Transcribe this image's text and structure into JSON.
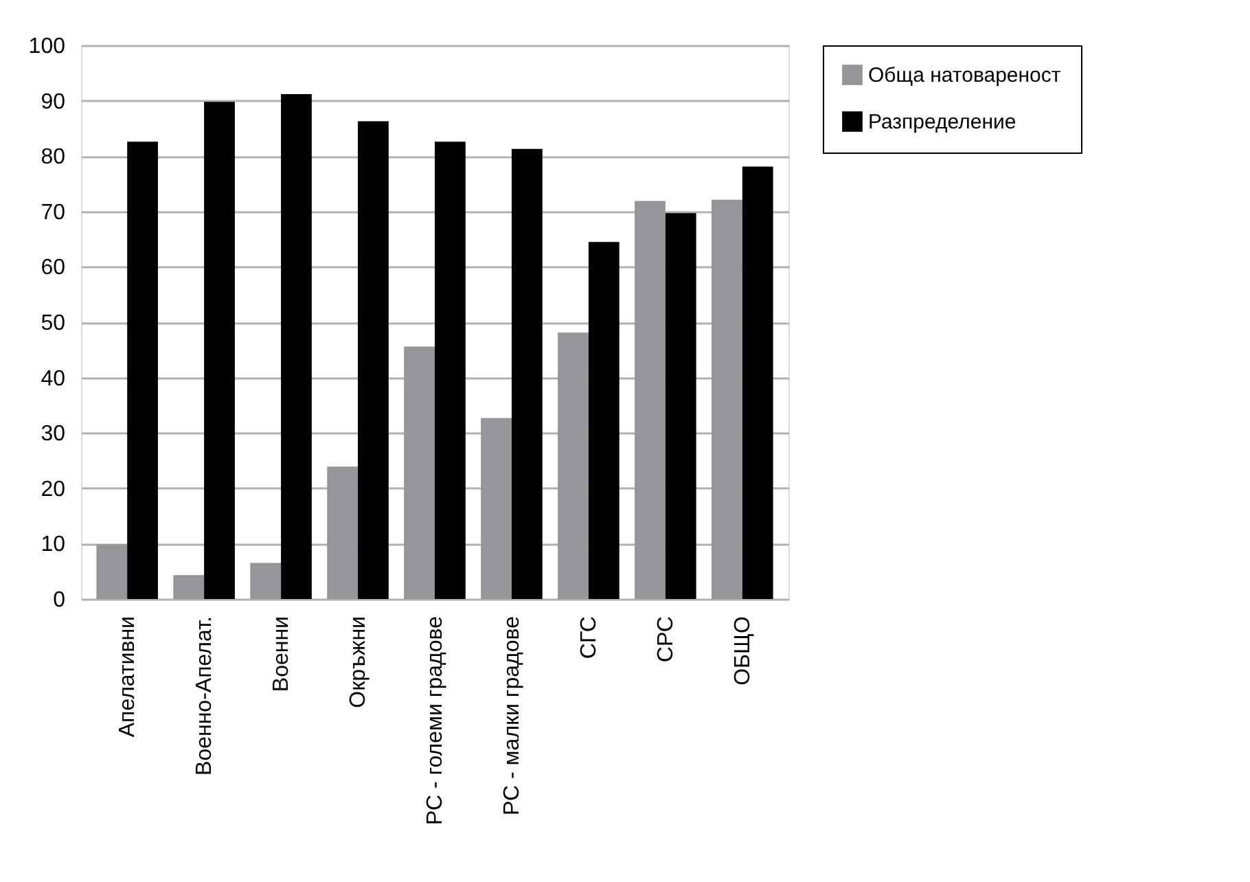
{
  "chart_data": {
    "type": "bar",
    "categories": [
      "Апелативни",
      "Военно-Апелат.",
      "Военни",
      "Окръжни",
      "РС - големи градове",
      "РС - малки градове",
      "СГС",
      "СРС",
      "ОБЩО"
    ],
    "series": [
      {
        "name": "Обща натовареност",
        "color": "#939598",
        "values": [
          9.9,
          4.3,
          6.5,
          23.9,
          45.6,
          32.7,
          48.1,
          71.9,
          72.1
        ]
      },
      {
        "name": "Разпределение",
        "color": "#000000",
        "values": [
          82.6,
          89.8,
          91.2,
          86.3,
          82.6,
          81.3,
          64.5,
          69.7,
          78.1
        ]
      }
    ],
    "ylim": [
      0,
      100
    ],
    "yticks": [
      0,
      10,
      20,
      30,
      40,
      50,
      60,
      70,
      80,
      90,
      100
    ],
    "grid": "y",
    "legend": "top right"
  }
}
